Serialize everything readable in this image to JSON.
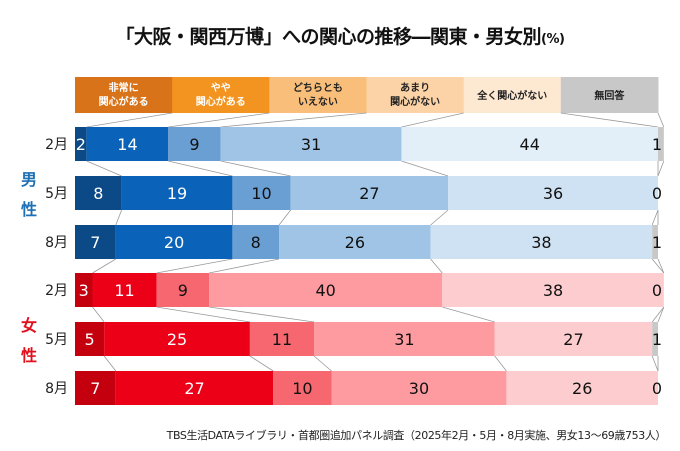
{
  "title": "「大阪・関西万博」への関心の推移―関東・男女別",
  "unit": "(%)",
  "source": "TBS生活DATAライブラリ・首都圏追加パネル調査（2025年2月・5月・8月実施、男女13〜69歳753人）",
  "chart_data": {
    "type": "bar",
    "orientation": "horizontal-stacked-100",
    "title": "「大阪・関西万博」への関心の推移―関東・男女別 (%)",
    "xlabel": "",
    "ylabel": "",
    "xlim": [
      0,
      100
    ],
    "legend_position": "top",
    "categories": [
      {
        "group": "男性",
        "label": "2月"
      },
      {
        "group": "男性",
        "label": "5月"
      },
      {
        "group": "男性",
        "label": "8月"
      },
      {
        "group": "女性",
        "label": "2月"
      },
      {
        "group": "女性",
        "label": "5月"
      },
      {
        "group": "女性",
        "label": "8月"
      }
    ],
    "series": [
      {
        "name": "非常に関心がある",
        "header_lines": [
          "非常に",
          "関心がある"
        ],
        "values": [
          2,
          8,
          7,
          3,
          5,
          7
        ]
      },
      {
        "name": "やや関心がある",
        "header_lines": [
          "やや",
          "関心がある"
        ],
        "values": [
          14,
          19,
          20,
          11,
          25,
          27
        ]
      },
      {
        "name": "どちらともいえない",
        "header_lines": [
          "どちらとも",
          "いえない"
        ],
        "values": [
          9,
          10,
          8,
          9,
          11,
          10
        ]
      },
      {
        "name": "あまり関心がない",
        "header_lines": [
          "あまり",
          "関心がない"
        ],
        "values": [
          31,
          27,
          26,
          40,
          31,
          30
        ]
      },
      {
        "name": "全く関心がない",
        "header_lines": [
          "全く関心がない"
        ],
        "values": [
          44,
          36,
          38,
          38,
          27,
          26
        ]
      },
      {
        "name": "無回答",
        "header_lines": [
          "無回答"
        ],
        "values": [
          1,
          0,
          1,
          0,
          1,
          0
        ]
      }
    ],
    "groups": [
      {
        "name": "男性",
        "chars": [
          "男",
          "性"
        ],
        "color": "#1f6fb5"
      },
      {
        "name": "女性",
        "chars": [
          "女",
          "性"
        ],
        "color": "#e0101c"
      }
    ],
    "colors": {
      "header": [
        "#d9731a",
        "#f39320",
        "#f9bf7a",
        "#fbd3a6",
        "#fde8d2",
        "#c8c8c8"
      ],
      "header_text": [
        "#ffffff",
        "#ffffff",
        "#222222",
        "#222222",
        "#222222",
        "#222222"
      ],
      "male": [
        "#0b4a86",
        "#0a63b8",
        "#6a9fd3",
        "#9fc4e6",
        "#cfe2f3",
        "#c8c8c8"
      ],
      "male_alt_last": "#e2eef8",
      "female": [
        "#c4000f",
        "#ec0018",
        "#f7676f",
        "#fd9ba1",
        "#fdcccf",
        "#c8c8c8"
      ],
      "value_text_light": [
        "#ffffff",
        "#ffffff",
        "#111111",
        "#111111",
        "#111111",
        "#111111"
      ],
      "connector": "#999999"
    }
  }
}
